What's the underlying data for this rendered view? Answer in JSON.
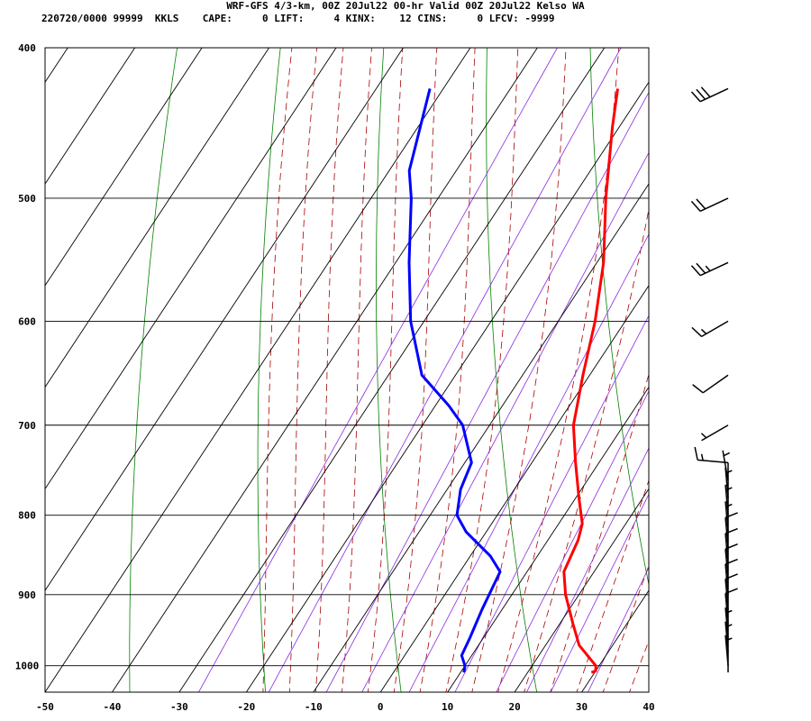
{
  "header": {
    "title": "WRF-GFS 4/3-km, 00Z 20Jul22 00-hr Valid 00Z 20Jul22 Kelso WA",
    "info": "220720/0000 99999  KKLS    CAPE:     0 LIFT:     4 KINX:    12 CINS:     0 LFCV: -9999"
  },
  "colors": {
    "temperature": "#ff0000",
    "dewpoint": "#0000ff",
    "isotherm": "#000000",
    "dry_adiabat": "#008000",
    "moist_adiabat": "#aa0000",
    "mixing_ratio": "#8a2be2",
    "wind_barb": "#000000"
  },
  "chart_data": {
    "type": "skew-t",
    "title": "WRF-GFS 4/3-km, 00Z 20Jul22 00-hr Valid 00Z 20Jul22 Kelso WA",
    "xlim": [
      -50,
      40
    ],
    "ylim": [
      1040,
      400
    ],
    "y_scale": "log",
    "xticks": [
      -50,
      -40,
      -30,
      -20,
      -10,
      0,
      10,
      20,
      30,
      40
    ],
    "yticks": [
      400,
      500,
      600,
      700,
      800,
      900,
      1000
    ],
    "grid": true,
    "series": [
      {
        "name": "temperature",
        "points": [
          {
            "p": 1010,
            "t": 29.5
          },
          {
            "p": 1008,
            "t": 30
          },
          {
            "p": 1000,
            "t": 29.5
          },
          {
            "p": 970,
            "t": 25
          },
          {
            "p": 940,
            "t": 22
          },
          {
            "p": 900,
            "t": 18
          },
          {
            "p": 870,
            "t": 15.5
          },
          {
            "p": 830,
            "t": 14.5
          },
          {
            "p": 810,
            "t": 13.5
          },
          {
            "p": 780,
            "t": 10.5
          },
          {
            "p": 740,
            "t": 6.5
          },
          {
            "p": 700,
            "t": 2.5
          },
          {
            "p": 650,
            "t": -1
          },
          {
            "p": 600,
            "t": -4.5
          },
          {
            "p": 550,
            "t": -9
          },
          {
            "p": 500,
            "t": -15
          },
          {
            "p": 450,
            "t": -21
          },
          {
            "p": 425,
            "t": -24
          }
        ]
      },
      {
        "name": "dewpoint",
        "points": [
          {
            "p": 1010,
            "t": 10.5
          },
          {
            "p": 1000,
            "t": 10
          },
          {
            "p": 985,
            "t": 8.5
          },
          {
            "p": 960,
            "t": 8
          },
          {
            "p": 920,
            "t": 7
          },
          {
            "p": 870,
            "t": 6
          },
          {
            "p": 850,
            "t": 3
          },
          {
            "p": 820,
            "t": -3
          },
          {
            "p": 800,
            "t": -6
          },
          {
            "p": 770,
            "t": -8
          },
          {
            "p": 740,
            "t": -9
          },
          {
            "p": 700,
            "t": -14
          },
          {
            "p": 680,
            "t": -18
          },
          {
            "p": 650,
            "t": -25
          },
          {
            "p": 600,
            "t": -32
          },
          {
            "p": 550,
            "t": -38
          },
          {
            "p": 500,
            "t": -44
          },
          {
            "p": 480,
            "t": -47
          },
          {
            "p": 425,
            "t": -52
          }
        ]
      }
    ],
    "wind_barbs_kt": [
      {
        "p": 425,
        "dir": 245,
        "spd": 30
      },
      {
        "p": 500,
        "dir": 245,
        "spd": 20
      },
      {
        "p": 550,
        "dir": 245,
        "spd": 25
      },
      {
        "p": 600,
        "dir": 240,
        "spd": 15
      },
      {
        "p": 650,
        "dir": 235,
        "spd": 10
      },
      {
        "p": 700,
        "dir": 240,
        "spd": 5
      },
      {
        "p": 740,
        "dir": 275,
        "spd": 15
      },
      {
        "p": 760,
        "dir": 350,
        "spd": 5
      },
      {
        "p": 780,
        "dir": 355,
        "spd": 5
      },
      {
        "p": 800,
        "dir": 355,
        "spd": 5
      },
      {
        "p": 820,
        "dir": 355,
        "spd": 5
      },
      {
        "p": 840,
        "dir": 355,
        "spd": 10
      },
      {
        "p": 860,
        "dir": 355,
        "spd": 10
      },
      {
        "p": 880,
        "dir": 355,
        "spd": 10
      },
      {
        "p": 900,
        "dir": 355,
        "spd": 10
      },
      {
        "p": 920,
        "dir": 355,
        "spd": 10
      },
      {
        "p": 940,
        "dir": 355,
        "spd": 10
      },
      {
        "p": 960,
        "dir": 355,
        "spd": 5
      },
      {
        "p": 980,
        "dir": 355,
        "spd": 5
      },
      {
        "p": 1000,
        "dir": 355,
        "spd": 5
      }
    ]
  }
}
